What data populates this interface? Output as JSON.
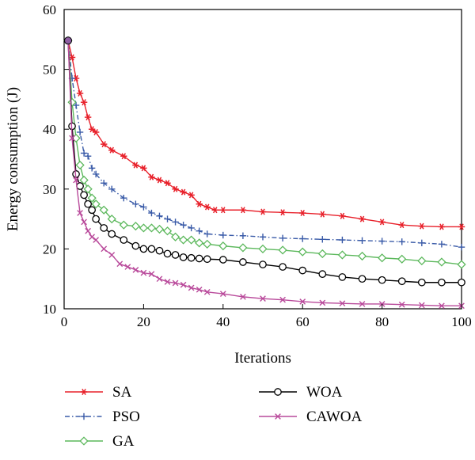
{
  "chart_data": {
    "type": "line",
    "title": "",
    "xlabel": "Iterations",
    "ylabel": "Energy consumption (J)",
    "xlim": [
      0,
      100
    ],
    "ylim": [
      10,
      60
    ],
    "xticks": [
      0,
      20,
      40,
      60,
      80,
      100
    ],
    "yticks": [
      10,
      20,
      30,
      40,
      50,
      60
    ],
    "grid": false,
    "legend_position": "bottom",
    "series": [
      {
        "name": "SA",
        "color": "#e8202a",
        "marker": "asterisk",
        "line": "solid",
        "x": [
          1,
          2,
          3,
          4,
          5,
          6,
          7,
          8,
          10,
          12,
          15,
          18,
          20,
          22,
          24,
          26,
          28,
          30,
          32,
          34,
          36,
          38,
          40,
          45,
          50,
          55,
          60,
          65,
          70,
          75,
          80,
          85,
          90,
          95,
          100
        ],
        "values": [
          54.8,
          52,
          48.5,
          46,
          44.5,
          42,
          40,
          39.5,
          37.5,
          36.5,
          35.5,
          34,
          33.5,
          32,
          31.5,
          31,
          30,
          29.5,
          29,
          27.5,
          27,
          26.5,
          26.5,
          26.5,
          26.2,
          26.1,
          26,
          25.8,
          25.5,
          25,
          24.5,
          24,
          23.8,
          23.7,
          23.7
        ]
      },
      {
        "name": "PSO",
        "color": "#3a5ba8",
        "marker": "plus",
        "line": "dashdot",
        "x": [
          1,
          2,
          3,
          4,
          5,
          6,
          7,
          8,
          10,
          12,
          15,
          18,
          20,
          22,
          24,
          26,
          28,
          30,
          32,
          34,
          36,
          40,
          45,
          50,
          55,
          60,
          65,
          70,
          75,
          80,
          85,
          90,
          95,
          100
        ],
        "values": [
          54.8,
          48.5,
          44,
          39.5,
          36,
          35.5,
          33.5,
          32.5,
          31,
          30,
          28.5,
          27.5,
          27,
          26,
          25.5,
          25,
          24.5,
          24,
          23.5,
          23,
          22.5,
          22.3,
          22.2,
          22,
          21.8,
          21.7,
          21.6,
          21.5,
          21.4,
          21.3,
          21.2,
          21,
          20.8,
          20.3
        ]
      },
      {
        "name": "GA",
        "color": "#5cb85c",
        "marker": "diamond",
        "line": "solid",
        "x": [
          1,
          2,
          3,
          4,
          5,
          6,
          7,
          8,
          10,
          12,
          15,
          18,
          20,
          22,
          24,
          26,
          28,
          30,
          32,
          34,
          36,
          40,
          45,
          50,
          55,
          60,
          65,
          70,
          75,
          80,
          85,
          90,
          95,
          100
        ],
        "values": [
          54.8,
          44.5,
          38.5,
          34,
          31.5,
          30,
          28.5,
          27.5,
          26.5,
          25,
          24,
          23.8,
          23.5,
          23.5,
          23.3,
          23,
          22,
          21.5,
          21.5,
          21,
          20.8,
          20.5,
          20.2,
          20,
          19.8,
          19.5,
          19.2,
          19,
          18.8,
          18.5,
          18.3,
          18,
          17.8,
          17.4
        ]
      },
      {
        "name": "WOA",
        "color": "#000000",
        "marker": "circle",
        "line": "solid",
        "x": [
          1,
          2,
          3,
          4,
          5,
          6,
          7,
          8,
          10,
          12,
          15,
          18,
          20,
          22,
          24,
          26,
          28,
          30,
          32,
          34,
          36,
          40,
          45,
          50,
          55,
          60,
          65,
          70,
          75,
          80,
          85,
          90,
          95,
          100
        ],
        "values": [
          54.8,
          40.5,
          32.5,
          30.5,
          29,
          27.5,
          26.5,
          25,
          23.5,
          22.5,
          21.5,
          20.5,
          20,
          20,
          19.7,
          19.2,
          19,
          18.6,
          18.5,
          18.4,
          18.3,
          18.2,
          17.8,
          17.4,
          17,
          16.4,
          15.8,
          15.3,
          15,
          14.8,
          14.6,
          14.4,
          14.4,
          14.4
        ]
      },
      {
        "name": "CAWOA",
        "color": "#b94a9b",
        "marker": "x",
        "line": "solid",
        "x": [
          1,
          2,
          3,
          4,
          5,
          6,
          7,
          8,
          10,
          12,
          14,
          16,
          18,
          20,
          22,
          24,
          26,
          28,
          30,
          32,
          34,
          36,
          40,
          45,
          50,
          55,
          60,
          65,
          70,
          75,
          80,
          85,
          90,
          95,
          100
        ],
        "values": [
          54.8,
          38.5,
          31.5,
          26,
          24.5,
          23,
          22,
          21.5,
          20,
          19,
          17.5,
          17,
          16.5,
          16,
          15.8,
          15,
          14.5,
          14.3,
          14,
          13.5,
          13.2,
          12.8,
          12.5,
          12,
          11.7,
          11.5,
          11.2,
          11,
          10.9,
          10.8,
          10.8,
          10.7,
          10.6,
          10.5,
          10.5
        ]
      }
    ]
  }
}
